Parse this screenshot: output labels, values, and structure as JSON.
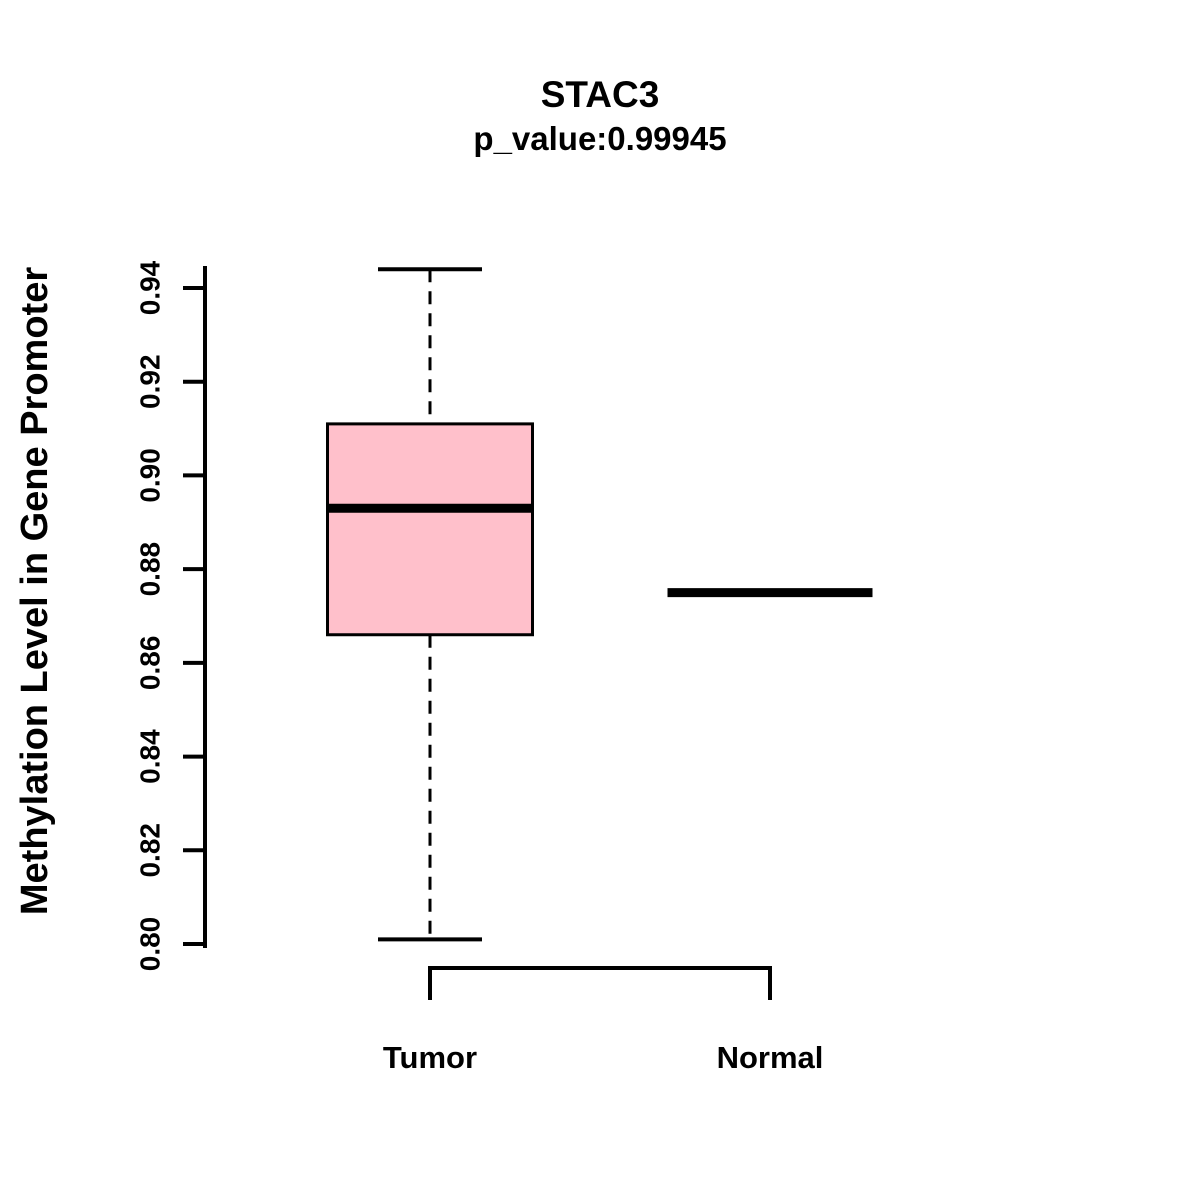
{
  "chart_data": {
    "type": "boxplot",
    "title": "STAC3",
    "subtitle": "p_value:0.99945",
    "ylabel": "Methylation Level in Gene Promoter",
    "xlabel": "",
    "ylim": [
      0.795,
      0.948
    ],
    "yticks": [
      0.8,
      0.82,
      0.84,
      0.86,
      0.88,
      0.9,
      0.92,
      0.94
    ],
    "categories": [
      "Tumor",
      "Normal"
    ],
    "series": [
      {
        "name": "Tumor",
        "lower_whisker": 0.801,
        "q1": 0.866,
        "median": 0.893,
        "q3": 0.911,
        "upper_whisker": 0.944
      },
      {
        "name": "Normal",
        "lower_whisker": 0.875,
        "q1": 0.875,
        "median": 0.875,
        "q3": 0.875,
        "upper_whisker": 0.875
      }
    ],
    "colors": {
      "box_fill": "#FFC0CB",
      "box_border": "#000000",
      "median_line": "#000000",
      "axis": "#000000",
      "background": "#FFFFFF"
    },
    "grid": false,
    "legend": "none",
    "whisker_style": "dashed"
  }
}
